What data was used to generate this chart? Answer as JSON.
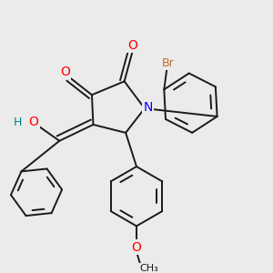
{
  "bg_color": "#ebebeb",
  "bond_color": "#1a1a1a",
  "atom_colors": {
    "O": "#ff0000",
    "N": "#0000ff",
    "Br": "#b87030",
    "H": "#008080"
  },
  "line_width": 1.4,
  "font_size": 9
}
